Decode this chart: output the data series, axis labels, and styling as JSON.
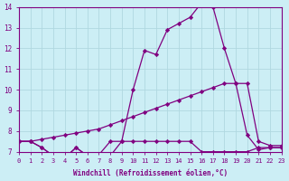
{
  "xlabel": "Windchill (Refroidissement éolien,°C)",
  "background_color": "#cceef5",
  "line_color": "#800080",
  "grid_color": "#b0d8e0",
  "xmin": 0,
  "xmax": 23,
  "ymin": 7,
  "ymax": 14,
  "line1_x": [
    0,
    1,
    2,
    3,
    4,
    5,
    6,
    7,
    8,
    9,
    10,
    11,
    12,
    13,
    14,
    15,
    16,
    17,
    18,
    19,
    20,
    21,
    22,
    23
  ],
  "line1_y": [
    7.5,
    7.5,
    7.2,
    6.8,
    6.7,
    7.2,
    6.8,
    6.85,
    7.5,
    7.5,
    7.5,
    7.5,
    7.5,
    7.5,
    7.5,
    7.5,
    7.0,
    7.0,
    7.0,
    7.0,
    7.0,
    7.2,
    7.2,
    7.2
  ],
  "line2_x": [
    0,
    1,
    2,
    3,
    4,
    5,
    6,
    7,
    8,
    9,
    10,
    11,
    12,
    13,
    14,
    15,
    16,
    17,
    18,
    19,
    20,
    21,
    22,
    23
  ],
  "line2_y": [
    7.5,
    7.5,
    7.6,
    7.7,
    7.8,
    7.9,
    8.0,
    8.1,
    8.3,
    8.5,
    8.7,
    8.9,
    9.1,
    9.3,
    9.5,
    9.7,
    9.9,
    10.1,
    10.3,
    10.3,
    10.3,
    7.5,
    7.3,
    7.3
  ],
  "line3_x": [
    0,
    1,
    2,
    3,
    4,
    5,
    6,
    7,
    8,
    9,
    10,
    11,
    12,
    13,
    14,
    15,
    16,
    17,
    18,
    19,
    20,
    21,
    22,
    23
  ],
  "line3_y": [
    7.5,
    7.5,
    7.2,
    6.8,
    6.7,
    7.2,
    6.8,
    6.8,
    6.8,
    7.5,
    10.0,
    11.9,
    11.7,
    12.9,
    13.2,
    13.5,
    14.2,
    14.0,
    12.0,
    10.3,
    7.8,
    7.1,
    7.2,
    7.2
  ]
}
